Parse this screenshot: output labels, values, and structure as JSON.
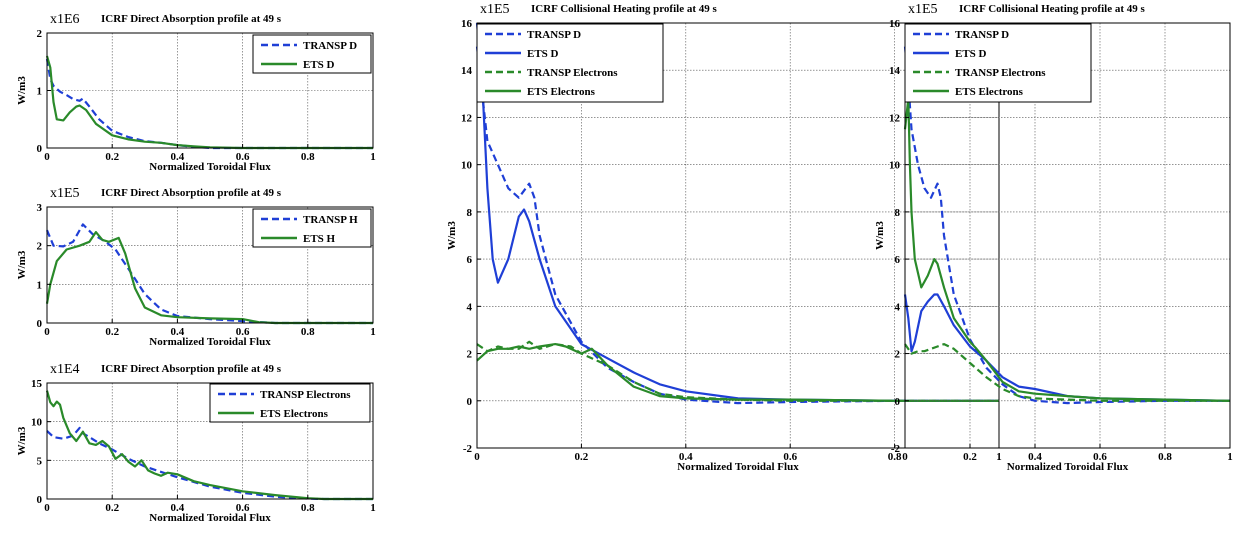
{
  "chart_data": [
    {
      "type": "line",
      "multiplier": "x1E6",
      "title": "ICRF Direct Absorption profile at 49 s",
      "xlabel": "Normalized Toroidal Flux",
      "ylabel": "W/m3",
      "xlim": [
        0,
        1
      ],
      "ylim": [
        0,
        2
      ],
      "xticks": [
        "0",
        "0.2",
        "0.4",
        "0.6",
        "0.8",
        "1"
      ],
      "yticks": [
        "0",
        "1",
        "2"
      ],
      "ytick_values": [
        0,
        1,
        2
      ],
      "grid": true,
      "legend_position": "top-right",
      "series": [
        {
          "name": "TRANSP D",
          "color": "#1f3fd6",
          "dash": true,
          "x": [
            0,
            0.01,
            0.02,
            0.04,
            0.06,
            0.08,
            0.1,
            0.11,
            0.13,
            0.16,
            0.2,
            0.25,
            0.3,
            0.35,
            0.4,
            0.45,
            0.5,
            0.6,
            1.0
          ],
          "y": [
            1.55,
            1.2,
            1.08,
            0.98,
            0.92,
            0.85,
            0.82,
            0.86,
            0.72,
            0.5,
            0.3,
            0.19,
            0.12,
            0.09,
            0.05,
            0.02,
            0.0,
            0.0,
            0.0
          ]
        },
        {
          "name": "ETS D",
          "color": "#2a8a2a",
          "dash": false,
          "x": [
            0,
            0.01,
            0.02,
            0.03,
            0.05,
            0.07,
            0.09,
            0.1,
            0.12,
            0.15,
            0.2,
            0.25,
            0.3,
            0.35,
            0.4,
            0.45,
            0.5,
            0.6,
            1.0
          ],
          "y": [
            1.6,
            1.4,
            0.8,
            0.5,
            0.48,
            0.62,
            0.72,
            0.74,
            0.66,
            0.42,
            0.22,
            0.15,
            0.11,
            0.09,
            0.05,
            0.03,
            0.01,
            0.0,
            0.0
          ]
        }
      ]
    },
    {
      "type": "line",
      "multiplier": "x1E5",
      "title": "ICRF Direct Absorption profile at 49 s",
      "xlabel": "Normalized Toroidal Flux",
      "ylabel": "W/m3",
      "xlim": [
        0,
        1
      ],
      "ylim": [
        0,
        3
      ],
      "xticks": [
        "0",
        "0.2",
        "0.4",
        "0.6",
        "0.8",
        "1"
      ],
      "yticks": [
        "0",
        "1",
        "2",
        "3"
      ],
      "ytick_values": [
        0,
        1,
        2,
        3
      ],
      "grid": true,
      "legend_position": "top-right",
      "series": [
        {
          "name": "TRANSP H",
          "color": "#1f3fd6",
          "dash": true,
          "x": [
            0,
            0.02,
            0.05,
            0.08,
            0.11,
            0.14,
            0.18,
            0.21,
            0.25,
            0.3,
            0.35,
            0.4,
            0.5,
            0.6,
            0.7,
            1.0
          ],
          "y": [
            2.4,
            2.0,
            1.98,
            2.1,
            2.55,
            2.3,
            2.1,
            1.9,
            1.4,
            0.75,
            0.35,
            0.18,
            0.1,
            0.05,
            0.0,
            0.0
          ]
        },
        {
          "name": "ETS H",
          "color": "#2a8a2a",
          "dash": false,
          "x": [
            0,
            0.01,
            0.03,
            0.06,
            0.1,
            0.13,
            0.15,
            0.17,
            0.19,
            0.22,
            0.24,
            0.27,
            0.3,
            0.35,
            0.4,
            0.5,
            0.6,
            0.65,
            0.7,
            1.0
          ],
          "y": [
            0.5,
            1.0,
            1.6,
            1.9,
            2.0,
            2.1,
            2.35,
            2.15,
            2.1,
            2.2,
            1.8,
            0.9,
            0.4,
            0.2,
            0.15,
            0.12,
            0.1,
            0.02,
            0.0,
            0.0
          ]
        }
      ]
    },
    {
      "type": "line",
      "multiplier": "x1E4",
      "title": "ICRF Direct Absorption profile at 49 s",
      "xlabel": "Normalized Toroidal Flux",
      "ylabel": "W/m3",
      "xlim": [
        0,
        1
      ],
      "ylim": [
        0,
        15
      ],
      "xticks": [
        "0",
        "0.2",
        "0.4",
        "0.6",
        "0.8",
        "1"
      ],
      "yticks": [
        "0",
        "5",
        "10",
        "15"
      ],
      "ytick_values": [
        0,
        5,
        10,
        15
      ],
      "grid": true,
      "legend_position": "top-right",
      "series": [
        {
          "name": "TRANSP Electrons",
          "color": "#1f3fd6",
          "dash": true,
          "x": [
            0,
            0.02,
            0.05,
            0.08,
            0.1,
            0.11,
            0.13,
            0.16,
            0.2,
            0.25,
            0.3,
            0.35,
            0.4,
            0.5,
            0.6,
            0.7,
            0.8,
            0.85,
            1.0
          ],
          "y": [
            8.8,
            8.0,
            7.8,
            8.2,
            9.2,
            8.5,
            8.0,
            7.2,
            6.4,
            5.2,
            4.2,
            3.5,
            2.8,
            1.6,
            0.8,
            0.3,
            0.05,
            0.0,
            0.0
          ]
        },
        {
          "name": "ETS Electrons",
          "color": "#2a8a2a",
          "dash": false,
          "x": [
            0,
            0.01,
            0.02,
            0.03,
            0.04,
            0.05,
            0.07,
            0.09,
            0.11,
            0.13,
            0.15,
            0.17,
            0.19,
            0.21,
            0.23,
            0.25,
            0.27,
            0.29,
            0.31,
            0.33,
            0.35,
            0.37,
            0.4,
            0.45,
            0.5,
            0.6,
            0.7,
            0.8,
            0.85,
            1.0
          ],
          "y": [
            14.0,
            12.5,
            12.0,
            12.6,
            12.2,
            10.5,
            8.5,
            7.5,
            8.7,
            7.2,
            7.0,
            7.5,
            6.8,
            5.2,
            5.8,
            4.8,
            4.2,
            5.0,
            3.7,
            3.3,
            3.0,
            3.4,
            3.2,
            2.3,
            1.8,
            1.0,
            0.5,
            0.1,
            0.0,
            0.0
          ]
        }
      ]
    },
    {
      "type": "line",
      "multiplier": "x1E5",
      "title": "ICRF Collisional Heating profile at 49 s",
      "xlabel": "Normalized Toroidal Flux",
      "ylabel": "W/m3",
      "xlim": [
        0,
        1
      ],
      "ylim": [
        -2,
        16
      ],
      "xticks": [
        "0",
        "0.2",
        "0.4",
        "0.6",
        "0.8",
        "1"
      ],
      "yticks": [
        "-2",
        "0",
        "2",
        "4",
        "6",
        "8",
        "10",
        "12",
        "14",
        "16"
      ],
      "ytick_values": [
        -2,
        0,
        2,
        4,
        6,
        8,
        10,
        12,
        14,
        16
      ],
      "grid": true,
      "legend_position": "top-left",
      "series": [
        {
          "name": "TRANSP D",
          "color": "#1f3fd6",
          "dash": true,
          "x": [
            0,
            0.01,
            0.02,
            0.04,
            0.06,
            0.08,
            0.1,
            0.11,
            0.12,
            0.15,
            0.2,
            0.25,
            0.3,
            0.35,
            0.4,
            0.5,
            0.6,
            0.8,
            1.0
          ],
          "y": [
            15.0,
            13.0,
            11.0,
            10.0,
            9.0,
            8.6,
            9.2,
            8.6,
            7.0,
            4.5,
            2.5,
            1.4,
            0.8,
            0.3,
            0.05,
            -0.1,
            -0.05,
            0.0,
            0.0
          ]
        },
        {
          "name": "ETS D",
          "color": "#1f3fd6",
          "dash": false,
          "x": [
            0,
            0.01,
            0.02,
            0.03,
            0.04,
            0.06,
            0.08,
            0.09,
            0.1,
            0.12,
            0.15,
            0.2,
            0.25,
            0.3,
            0.35,
            0.4,
            0.5,
            0.6,
            0.8,
            1.0
          ],
          "y": [
            16.0,
            13.5,
            9.0,
            6.0,
            5.0,
            6.0,
            7.8,
            8.1,
            7.6,
            6.0,
            4.0,
            2.4,
            1.8,
            1.2,
            0.7,
            0.4,
            0.1,
            0.05,
            0.0,
            0.0
          ]
        },
        {
          "name": "TRANSP Electrons",
          "color": "#2a8a2a",
          "dash": true,
          "x": [
            0,
            0.02,
            0.04,
            0.06,
            0.08,
            0.1,
            0.12,
            0.15,
            0.18,
            0.2,
            0.25,
            0.3,
            0.35,
            0.4,
            0.5,
            0.6,
            0.8,
            1.0
          ],
          "y": [
            2.4,
            2.1,
            2.3,
            2.2,
            2.2,
            2.5,
            2.2,
            2.4,
            2.3,
            2.0,
            1.5,
            0.8,
            0.3,
            0.15,
            0.05,
            0.0,
            0.0,
            0.0
          ]
        },
        {
          "name": "ETS Electrons",
          "color": "#2a8a2a",
          "dash": false,
          "x": [
            0,
            0.02,
            0.04,
            0.06,
            0.08,
            0.1,
            0.12,
            0.15,
            0.17,
            0.2,
            0.22,
            0.25,
            0.3,
            0.35,
            0.4,
            0.5,
            0.6,
            0.8,
            1.0
          ],
          "y": [
            1.7,
            2.1,
            2.2,
            2.2,
            2.3,
            2.2,
            2.3,
            2.4,
            2.3,
            2.0,
            2.2,
            1.5,
            0.6,
            0.2,
            0.1,
            0.05,
            0.05,
            0.0,
            0.0
          ]
        }
      ]
    },
    {
      "type": "line",
      "multiplier": "x1E5",
      "title": "ICRF Collisional Heating profile at 49 s",
      "xlabel": "Normalized Toroidal Flux",
      "ylabel": "W/m3",
      "xlim": [
        0,
        1
      ],
      "ylim": [
        -2,
        16
      ],
      "xticks": [
        "0",
        "0.2",
        "0.4",
        "0.6",
        "0.8",
        "1"
      ],
      "yticks": [
        "-2",
        "0",
        "2",
        "4",
        "6",
        "8",
        "10",
        "12",
        "14",
        "16"
      ],
      "ytick_values": [
        -2,
        0,
        2,
        4,
        6,
        8,
        10,
        12,
        14,
        16
      ],
      "grid": true,
      "legend_position": "top-left",
      "series": [
        {
          "name": "TRANSP D",
          "color": "#1f3fd6",
          "dash": true,
          "x": [
            0,
            0.01,
            0.02,
            0.04,
            0.06,
            0.08,
            0.1,
            0.11,
            0.12,
            0.15,
            0.2,
            0.25,
            0.3,
            0.35,
            0.4,
            0.5,
            0.6,
            0.8,
            1.0
          ],
          "y": [
            15.0,
            13.5,
            11.5,
            10.0,
            9.0,
            8.6,
            9.2,
            8.6,
            7.0,
            4.5,
            2.6,
            1.4,
            0.7,
            0.2,
            0.0,
            -0.1,
            -0.05,
            0.0,
            0.0
          ]
        },
        {
          "name": "ETS D",
          "color": "#1f3fd6",
          "dash": false,
          "x": [
            0,
            0.01,
            0.02,
            0.03,
            0.05,
            0.07,
            0.09,
            0.1,
            0.12,
            0.15,
            0.2,
            0.25,
            0.3,
            0.35,
            0.4,
            0.5,
            0.6,
            0.8,
            1.0
          ],
          "y": [
            4.5,
            3.5,
            2.1,
            2.5,
            3.8,
            4.2,
            4.5,
            4.5,
            4.0,
            3.2,
            2.3,
            1.7,
            1.0,
            0.6,
            0.5,
            0.2,
            0.1,
            0.05,
            0.0
          ]
        },
        {
          "name": "TRANSP Electrons",
          "color": "#2a8a2a",
          "dash": true,
          "x": [
            0,
            0.02,
            0.04,
            0.06,
            0.08,
            0.1,
            0.12,
            0.15,
            0.2,
            0.25,
            0.3,
            0.35,
            0.4,
            0.5,
            0.6,
            0.8,
            1.0
          ],
          "y": [
            2.4,
            2.0,
            2.1,
            2.1,
            2.2,
            2.3,
            2.4,
            2.2,
            1.6,
            1.0,
            0.5,
            0.2,
            0.1,
            0.05,
            0.0,
            0.0,
            0.0
          ]
        },
        {
          "name": "ETS Electrons",
          "color": "#2a8a2a",
          "dash": false,
          "x": [
            0,
            0.01,
            0.015,
            0.02,
            0.03,
            0.05,
            0.07,
            0.09,
            0.1,
            0.12,
            0.15,
            0.2,
            0.22,
            0.25,
            0.3,
            0.35,
            0.4,
            0.5,
            0.6,
            0.8,
            1.0
          ],
          "y": [
            11.5,
            12.8,
            10.0,
            8.0,
            6.0,
            4.8,
            5.3,
            6.0,
            5.8,
            4.8,
            3.5,
            2.5,
            2.2,
            1.7,
            0.8,
            0.4,
            0.3,
            0.2,
            0.1,
            0.05,
            0.0
          ]
        }
      ]
    }
  ]
}
